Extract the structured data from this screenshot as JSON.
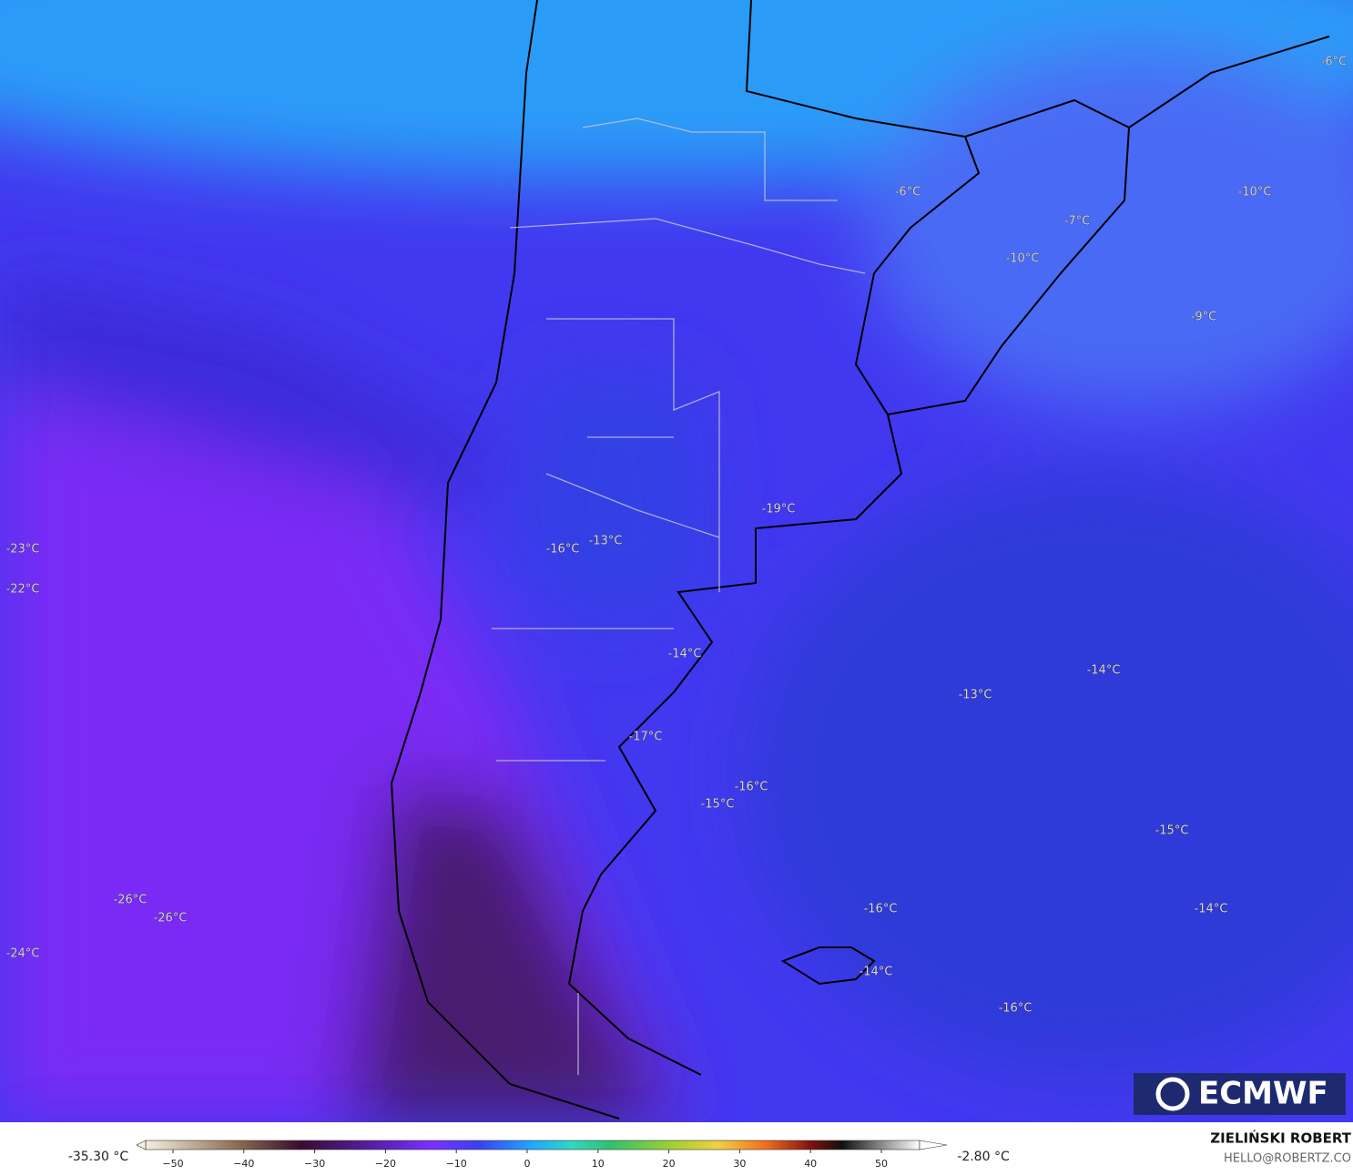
{
  "map": {
    "temperature_labels": [
      "-6°C",
      "-6°C",
      "-10°C",
      "-7°C",
      "-10°C",
      "-9°C",
      "-19°C",
      "-23°C",
      "-22°C",
      "-16°C",
      "-13°C",
      "-14°C",
      "-14°C",
      "-13°C",
      "-17°C",
      "-16°C",
      "-15°C",
      "-15°C",
      "-26°C",
      "-26°C",
      "-16°C",
      "-14°C",
      "-24°C",
      "-14°C",
      "-16°C"
    ]
  },
  "logo": "ECMWF",
  "colorbar": {
    "min_label": "-35.30 °C",
    "max_label": "-2.80 °C",
    "ticks": [
      {
        "value": -50,
        "label": "−50"
      },
      {
        "value": -40,
        "label": "−40"
      },
      {
        "value": -30,
        "label": "−30"
      },
      {
        "value": -20,
        "label": "−20"
      },
      {
        "value": -10,
        "label": "−10"
      },
      0,
      10,
      20,
      30,
      40,
      50
    ]
  },
  "credit": {
    "author": "ZIELIŃSKI ROBERT",
    "email": "HELLO@ROBERTZ.CO"
  }
}
